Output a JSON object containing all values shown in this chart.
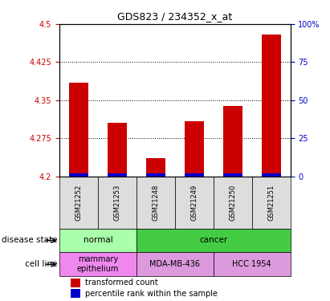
{
  "title": "GDS823 / 234352_x_at",
  "samples": [
    "GSM21252",
    "GSM21253",
    "GSM21248",
    "GSM21249",
    "GSM21250",
    "GSM21251"
  ],
  "transformed_counts": [
    4.385,
    4.305,
    4.235,
    4.308,
    4.338,
    4.48
  ],
  "percentile_ranks": [
    3.5,
    3.5,
    3.5,
    3.5,
    3.5,
    3.5
  ],
  "ylim": [
    4.2,
    4.5
  ],
  "yticks": [
    4.2,
    4.275,
    4.35,
    4.425,
    4.5
  ],
  "ytick_labels": [
    "4.2",
    "4.275",
    "4.35",
    "4.425",
    "4.5"
  ],
  "right_yticks": [
    0,
    25,
    50,
    75,
    100
  ],
  "right_ytick_labels": [
    "0",
    "25",
    "50",
    "75",
    "100%"
  ],
  "bar_color_red": "#cc0000",
  "bar_color_blue": "#0000cc",
  "grid_color": "#000000",
  "disease_state_groups": [
    {
      "label": "normal",
      "cols": [
        0,
        1
      ],
      "color": "#aaffaa"
    },
    {
      "label": "cancer",
      "cols": [
        2,
        3,
        4,
        5
      ],
      "color": "#44cc44"
    }
  ],
  "cell_line_groups": [
    {
      "label": "mammary\nepithelium",
      "cols": [
        0,
        1
      ],
      "color": "#ee88ee"
    },
    {
      "label": "MDA-MB-436",
      "cols": [
        2,
        3
      ],
      "color": "#dd99dd"
    },
    {
      "label": "HCC 1954",
      "cols": [
        4,
        5
      ],
      "color": "#dd99dd"
    }
  ],
  "left_label_disease": "disease state",
  "left_label_cell": "cell line",
  "legend_red": "transformed count",
  "legend_blue": "percentile rank within the sample",
  "bar_width": 0.5,
  "percentile_bar_scale": 0.3,
  "left_tick_color": "#cc0000",
  "right_tick_color": "#0000cc"
}
